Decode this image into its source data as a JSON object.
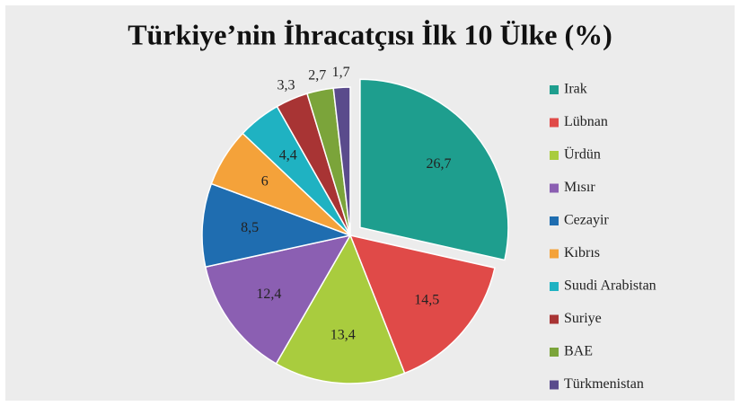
{
  "chart_data": {
    "type": "pie",
    "title": "Türkiye’nin İhracatçısı İlk 10 Ülke (%)",
    "categories": [
      "Irak",
      "Lübnan",
      "Ürdün",
      "Mısır",
      "Cezayir",
      "Kıbrıs",
      "Suudi Arabistan",
      "Suriye",
      "BAE",
      "Türkmenistan"
    ],
    "values": [
      26.7,
      14.5,
      13.4,
      12.4,
      8.5,
      6,
      4.4,
      3.3,
      2.7,
      1.7
    ],
    "value_labels": [
      "26,7",
      "14,5",
      "13,4",
      "12,4",
      "8,5",
      "6",
      "4,4",
      "3,3",
      "2,7",
      "1,7"
    ],
    "colors": [
      "#1e9e8e",
      "#e04a48",
      "#a9cc3e",
      "#8b5fb2",
      "#1f6db0",
      "#f4a23a",
      "#1fb2c2",
      "#a83434",
      "#7ba43a",
      "#5a4b8c"
    ],
    "legend": "right"
  }
}
